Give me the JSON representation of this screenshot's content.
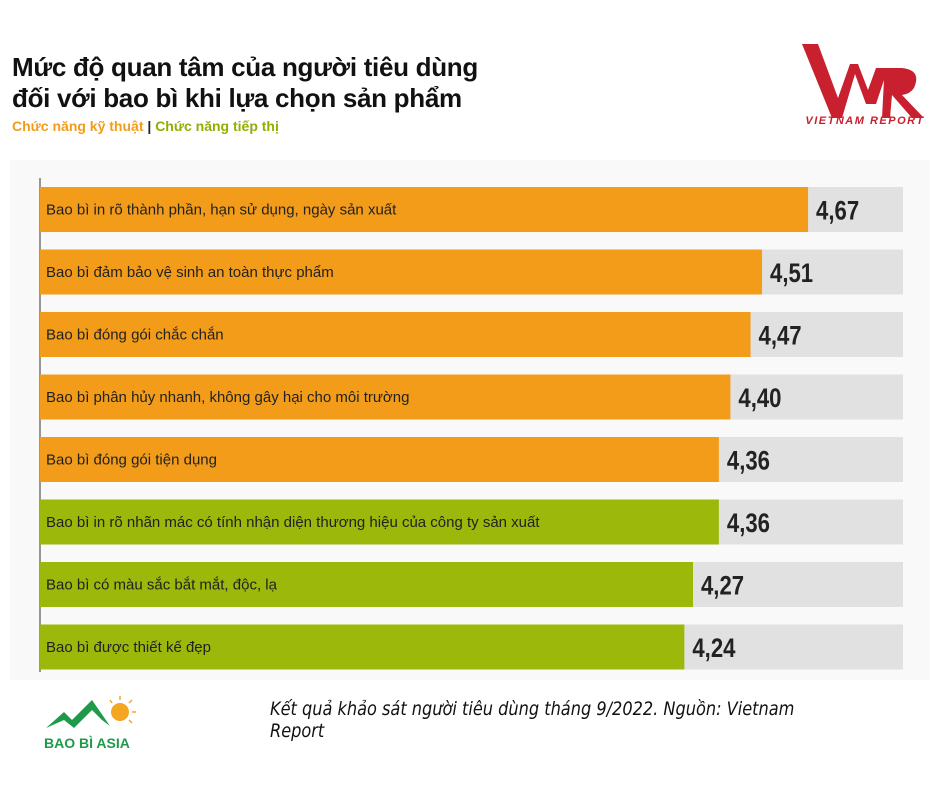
{
  "title_lines": [
    "Mức độ quan tâm của người tiêu dùng",
    "đối với bao bì khi lựa chọn sản phẩm"
  ],
  "legend": {
    "technical": "Chức năng kỹ thuật",
    "separator": "|",
    "marketing": "Chức năng tiếp thị"
  },
  "logo_vnr": {
    "mark": "VNR",
    "text": "VIETNAM REPORT"
  },
  "logo_baobi": {
    "text": "BAO BÌ ASIA"
  },
  "footnote": "Kết quả khảo sát người tiêu dùng tháng 9/2022. Nguồn: Vietnam Report",
  "colors": {
    "technical": "#f39c19",
    "marketing": "#9cb80b",
    "track": "#e1e1e1",
    "vnr_red": "#c8202f",
    "baobi_green": "#1f9a4a"
  },
  "chart_data": {
    "type": "bar",
    "orientation": "horizontal",
    "xlim": [
      2,
      5
    ],
    "grid": false,
    "legend_placement": "top-left",
    "categories": [
      "Bao bì in rõ thành phần, hạn sử dụng, ngày sản xuất",
      "Bao bì đảm bảo vệ sinh an toàn thực phẩm",
      "Bao bì đóng gói chắc chắn",
      "Bao bì phân hủy nhanh, không gây hại cho môi trường",
      "Bao bì đóng gói tiện dụng",
      "Bao bì in rõ nhãn mác có tính nhận diện thương hiệu của công ty sản xuất",
      "Bao bì có màu sắc bắt mắt, độc, lạ",
      "Bao bì được thiết kế đẹp"
    ],
    "values": [
      4.67,
      4.51,
      4.47,
      4.4,
      4.36,
      4.36,
      4.27,
      4.24
    ],
    "value_labels": [
      "4,67",
      "4,51",
      "4,47",
      "4,40",
      "4,36",
      "4,36",
      "4,27",
      "4,24"
    ],
    "groups": [
      "technical",
      "technical",
      "technical",
      "technical",
      "technical",
      "marketing",
      "marketing",
      "marketing"
    ]
  }
}
